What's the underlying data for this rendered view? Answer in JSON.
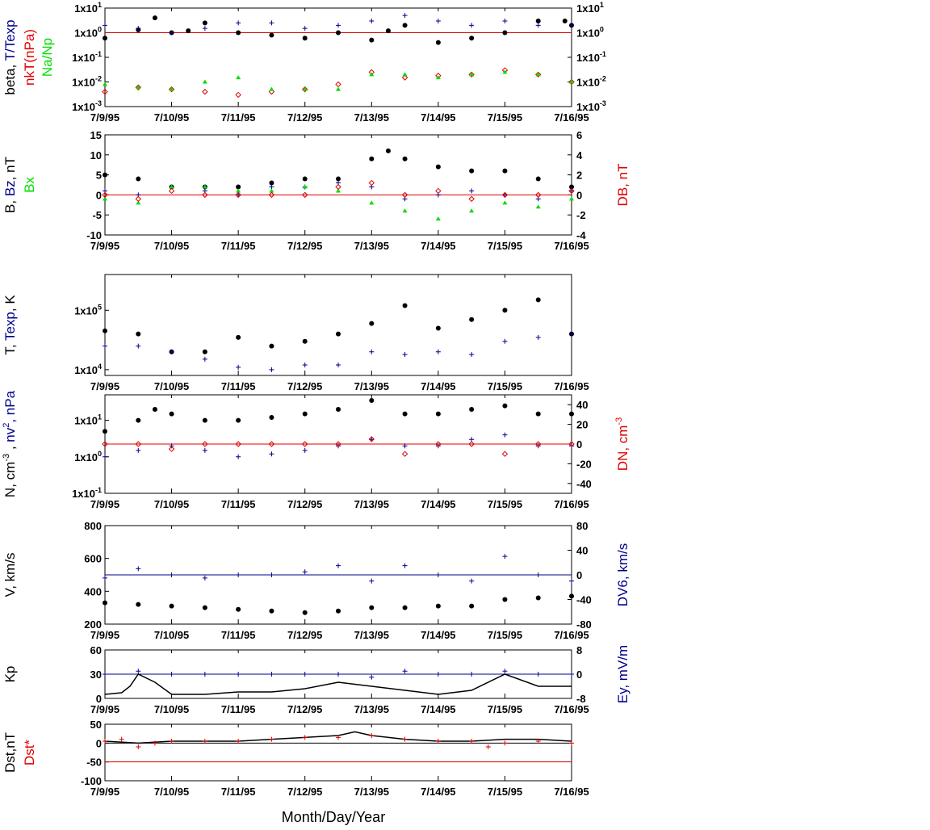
{
  "colors": {
    "black": "#000000",
    "red": "#e00000",
    "blue": "#00008b",
    "green": "#00dd00"
  },
  "x_axis": {
    "ticks": [
      "7/9/95",
      "7/10/95",
      "7/11/95",
      "7/12/95",
      "7/13/95",
      "7/14/95",
      "7/15/95",
      "7/16/95"
    ],
    "title": "Month/Day/Year"
  },
  "chart_data": [
    {
      "type": "scatter",
      "yscale": "log",
      "ylim": [
        0.001,
        10
      ],
      "y_ticks_left": [
        "1x10-3",
        "1x10-2",
        "1x10-1",
        "1x100",
        "1x101"
      ],
      "y_ticks_right": [
        "1x10-3",
        "1x10-2",
        "1x10-1",
        "1x100",
        "1x101"
      ],
      "ylabel_left": [
        [
          "beta",
          "black"
        ],
        [
          ", ",
          "black"
        ],
        [
          "T/Texp",
          "blue"
        ]
      ],
      "ylabel_left2": [
        [
          "nkT(nPa)",
          "red"
        ]
      ],
      "ylabel_left3": [
        [
          "Na/Np",
          "green"
        ]
      ],
      "reference_line": {
        "y": 1,
        "color": "red"
      },
      "series": [
        {
          "name": "beta",
          "marker": "dot",
          "color": "black",
          "x": [
            0,
            0.5,
            0.75,
            1,
            1.25,
            1.5,
            2,
            2.5,
            3,
            3.5,
            4,
            4.25,
            4.5,
            5,
            5.5,
            6,
            6.5,
            6.9,
            7
          ],
          "y": [
            0.6,
            1.3,
            4,
            1,
            1.2,
            2.5,
            1,
            0.8,
            0.6,
            1,
            0.5,
            1.2,
            2,
            0.4,
            0.6,
            1,
            3,
            3,
            2
          ]
        },
        {
          "name": "T/Texp",
          "marker": "plus",
          "color": "blue",
          "x": [
            0,
            0.5,
            1,
            1.5,
            2,
            2.5,
            3,
            3.5,
            4,
            4.5,
            5,
            5.5,
            6,
            6.5,
            7
          ],
          "y": [
            2,
            1.5,
            1,
            1.5,
            2.5,
            2.5,
            1.5,
            2,
            3,
            5,
            3,
            2,
            3,
            2,
            2
          ]
        },
        {
          "name": "nkT(nPa)",
          "marker": "diamond",
          "color": "red",
          "x": [
            0,
            0.5,
            1,
            1.5,
            2,
            2.5,
            3,
            3.5,
            4,
            4.5,
            5,
            5.5,
            6,
            6.5,
            7
          ],
          "y": [
            0.004,
            0.006,
            0.005,
            0.004,
            0.003,
            0.004,
            0.005,
            0.008,
            0.025,
            0.015,
            0.018,
            0.02,
            0.03,
            0.02,
            0.01
          ]
        },
        {
          "name": "Na/Np",
          "marker": "triangle",
          "color": "green",
          "x": [
            0,
            0.5,
            1,
            1.5,
            2,
            2.5,
            3,
            3.5,
            4,
            4.5,
            5,
            5.5,
            6,
            6.5,
            7
          ],
          "y": [
            0.008,
            0.006,
            0.005,
            0.01,
            0.015,
            0.005,
            0.005,
            0.005,
            0.02,
            0.02,
            0.015,
            0.02,
            0.025,
            0.02,
            0.01
          ]
        }
      ]
    },
    {
      "type": "scatter",
      "ylim": [
        -10,
        15
      ],
      "y2lim": [
        -4,
        6
      ],
      "y_ticks_left": [
        "-10",
        "-5",
        "0",
        "5",
        "10",
        "15"
      ],
      "y_ticks_right": [
        "-4",
        "-2",
        "0",
        "2",
        "4",
        "6"
      ],
      "ylabel_left": [
        [
          "B, ",
          "black"
        ],
        [
          "Bz",
          "blue"
        ],
        [
          ", nT",
          "black"
        ]
      ],
      "ylabel_left2": [
        [
          "Bx",
          "green"
        ]
      ],
      "ylabel_right": [
        [
          "DB, nT",
          "red"
        ]
      ],
      "reference_line": {
        "y": 0,
        "color": "red"
      },
      "series": [
        {
          "name": "B",
          "marker": "dot",
          "color": "black",
          "x": [
            0,
            0.5,
            1,
            1.5,
            2,
            2.5,
            3,
            3.5,
            4,
            4.25,
            4.5,
            5,
            5.5,
            6,
            6.5,
            7
          ],
          "y": [
            5,
            4,
            2,
            2,
            2,
            3,
            4,
            4,
            9,
            11,
            9,
            7,
            6,
            6,
            4,
            2
          ]
        },
        {
          "name": "Bz",
          "marker": "plus",
          "color": "blue",
          "x": [
            0,
            0.5,
            1,
            1.5,
            2,
            2.5,
            3,
            3.5,
            4,
            4.5,
            5,
            5.5,
            6,
            6.5,
            7
          ],
          "y": [
            1,
            0,
            2,
            1,
            0,
            2,
            2,
            3,
            2,
            -1,
            0,
            1,
            0,
            -1,
            1
          ]
        },
        {
          "name": "Bx",
          "marker": "triangle",
          "color": "green",
          "x": [
            0,
            0.5,
            1,
            1.5,
            2,
            2.5,
            3,
            3.5,
            4,
            4.5,
            5,
            5.5,
            6,
            6.5,
            7
          ],
          "y": [
            -1,
            -2,
            2,
            2,
            1,
            1,
            2,
            1,
            -2,
            -4,
            -6,
            -4,
            -2,
            -3,
            -1
          ]
        },
        {
          "name": "DB",
          "marker": "diamond",
          "color": "red",
          "x": [
            0,
            0.5,
            1,
            1.5,
            2,
            2.5,
            3,
            3.5,
            4,
            4.5,
            5,
            5.5,
            6,
            6.5,
            7
          ],
          "y": [
            0,
            -1,
            1,
            0,
            0,
            0,
            0,
            2,
            3,
            0,
            1,
            -1,
            0,
            0,
            1
          ]
        }
      ]
    },
    {
      "type": "scatter",
      "yscale": "log",
      "ylim": [
        8000,
        400000
      ],
      "y_ticks_left": [
        "1x104",
        "1x105"
      ],
      "ylabel_left": [
        [
          "T, ",
          "black"
        ],
        [
          "Texp",
          "blue"
        ],
        [
          ", K",
          "black"
        ]
      ],
      "series": [
        {
          "name": "T",
          "marker": "dot",
          "color": "black",
          "x": [
            0,
            0.5,
            1,
            1.5,
            2,
            2.5,
            3,
            3.5,
            4,
            4.5,
            5,
            5.5,
            6,
            6.5,
            7
          ],
          "y": [
            45000,
            40000,
            20000,
            20000,
            35000,
            25000,
            30000,
            40000,
            60000,
            120000,
            50000,
            70000,
            100000,
            150000,
            40000
          ]
        },
        {
          "name": "Texp",
          "marker": "plus",
          "color": "blue",
          "x": [
            0,
            0.5,
            1,
            1.5,
            2,
            2.5,
            3,
            3.5,
            4,
            4.5,
            5,
            5.5,
            6,
            6.5,
            7
          ],
          "y": [
            25000,
            25000,
            20000,
            15000,
            11000,
            10000,
            12000,
            12000,
            20000,
            18000,
            20000,
            18000,
            30000,
            35000,
            40000
          ]
        }
      ]
    },
    {
      "type": "scatter",
      "yscale": "log",
      "ylim": [
        0.1,
        50
      ],
      "y2lim": [
        -50,
        50
      ],
      "y_ticks_left": [
        "1x10-1",
        "1x100",
        "1x101"
      ],
      "y_ticks_right": [
        "-40",
        "-20",
        "0",
        "20",
        "40"
      ],
      "ylabel_left": [
        [
          "N, cm",
          "black"
        ],
        [
          "-3",
          "black",
          "sup"
        ],
        [
          " , ",
          "black"
        ],
        [
          "nv",
          "blue"
        ],
        [
          "2",
          "blue",
          "sup"
        ],
        [
          ", nPa",
          "blue"
        ]
      ],
      "ylabel_right": [
        [
          "DN, cm",
          "red"
        ],
        [
          "-3",
          "red",
          "sup"
        ]
      ],
      "reference_line": {
        "y2": 0,
        "color": "red"
      },
      "series": [
        {
          "name": "N",
          "marker": "dot",
          "color": "black",
          "x": [
            0,
            0.5,
            0.75,
            1,
            1.5,
            2,
            2.5,
            3,
            3.5,
            4,
            4.5,
            5,
            5.5,
            6,
            6.5,
            7
          ],
          "y": [
            5,
            10,
            20,
            15,
            10,
            10,
            12,
            15,
            20,
            35,
            15,
            15,
            20,
            25,
            15,
            15
          ]
        },
        {
          "name": "nv2",
          "marker": "plus",
          "color": "blue",
          "x": [
            0,
            0.5,
            1,
            1.5,
            2,
            2.5,
            3,
            3.5,
            4,
            4.5,
            5,
            5.5,
            6,
            6.5,
            7
          ],
          "y": [
            1,
            1.5,
            2,
            1.5,
            1,
            1.2,
            1.5,
            2,
            3,
            2,
            2,
            3,
            4,
            2,
            2
          ]
        },
        {
          "name": "DN",
          "marker": "diamond",
          "color": "red",
          "axis": "right",
          "x": [
            0,
            0.5,
            1,
            1.5,
            2,
            2.5,
            3,
            3.5,
            4,
            4.5,
            5,
            5.5,
            6,
            6.5,
            7
          ],
          "y": [
            0,
            0,
            -5,
            0,
            0,
            0,
            0,
            0,
            5,
            -10,
            0,
            0,
            -10,
            0,
            0
          ]
        }
      ]
    },
    {
      "type": "scatter",
      "ylim": [
        200,
        800
      ],
      "y2lim": [
        -80,
        80
      ],
      "y_ticks_left": [
        "200",
        "400",
        "600",
        "800"
      ],
      "y_ticks_right": [
        "-80",
        "-40",
        "0",
        "40",
        "80"
      ],
      "ylabel_left": [
        [
          "V, km/s",
          "black"
        ]
      ],
      "ylabel_right": [
        [
          "DV6, km/s",
          "blue"
        ]
      ],
      "reference_line": {
        "y2": 0,
        "color": "blue"
      },
      "series": [
        {
          "name": "V",
          "marker": "dot",
          "color": "black",
          "x": [
            0,
            0.5,
            1,
            1.5,
            2,
            2.5,
            3,
            3.5,
            4,
            4.5,
            5,
            5.5,
            6,
            6.5,
            7
          ],
          "y": [
            330,
            320,
            310,
            300,
            290,
            280,
            270,
            280,
            300,
            300,
            310,
            310,
            350,
            360,
            370
          ]
        },
        {
          "name": "DV6",
          "marker": "plus",
          "color": "blue",
          "axis": "right",
          "x": [
            0,
            0.5,
            1,
            1.5,
            2,
            2.5,
            3,
            3.5,
            4,
            4.5,
            5,
            5.5,
            6,
            6.5,
            7
          ],
          "y": [
            -5,
            10,
            0,
            -5,
            0,
            0,
            5,
            15,
            -10,
            15,
            0,
            -10,
            30,
            0,
            -10
          ]
        }
      ]
    },
    {
      "type": "line",
      "ylim": [
        0,
        60
      ],
      "y2lim": [
        -8,
        8
      ],
      "y_ticks_left": [
        "0",
        "30",
        "60"
      ],
      "y_ticks_right": [
        "-8",
        "0",
        "8"
      ],
      "ylabel_left": [
        [
          "Kp",
          "black"
        ]
      ],
      "ylabel_right": [
        [
          "Ey,  mV/m",
          "blue"
        ]
      ],
      "reference_line": {
        "y2": 0,
        "color": "blue"
      },
      "series": [
        {
          "name": "Kp",
          "marker": "line",
          "color": "black",
          "x": [
            0,
            0.25,
            0.375,
            0.5,
            0.75,
            1,
            1.5,
            2,
            2.5,
            3,
            3.5,
            4,
            4.5,
            5,
            5.5,
            6,
            6.5,
            7
          ],
          "y": [
            5,
            7,
            15,
            30,
            20,
            5,
            5,
            8,
            8,
            12,
            20,
            15,
            10,
            5,
            10,
            30,
            15,
            15
          ]
        },
        {
          "name": "Ey",
          "marker": "plus",
          "color": "blue",
          "axis": "right",
          "x": [
            0,
            0.5,
            1,
            1.5,
            2,
            2.5,
            3,
            3.5,
            4,
            4.5,
            5,
            5.5,
            6,
            6.5,
            7
          ],
          "y": [
            0,
            1,
            0,
            0,
            0,
            0,
            0,
            0,
            -1,
            1,
            0,
            0,
            1,
            0,
            0
          ]
        }
      ]
    },
    {
      "type": "line",
      "ylim": [
        -100,
        50
      ],
      "y_ticks_left": [
        "-100",
        "-50",
        "0",
        "50"
      ],
      "ylabel_left": [
        [
          "Dst,nT",
          "black"
        ]
      ],
      "ylabel_left2": [
        [
          "Dst*",
          "red"
        ]
      ],
      "reference_line": {
        "y": -50,
        "color": "red"
      },
      "zero_line": {
        "y": 0,
        "color": "black"
      },
      "series": [
        {
          "name": "Dst",
          "marker": "line",
          "color": "black",
          "x": [
            0,
            0.5,
            1,
            1.5,
            2,
            2.5,
            3,
            3.5,
            3.75,
            4,
            4.5,
            5,
            5.5,
            6,
            6.5,
            7
          ],
          "y": [
            5,
            0,
            5,
            5,
            5,
            10,
            15,
            20,
            30,
            20,
            10,
            5,
            5,
            10,
            10,
            5
          ]
        },
        {
          "name": "Dst*",
          "marker": "plus",
          "color": "red",
          "x": [
            0,
            0.25,
            0.5,
            0.75,
            1,
            1.5,
            2,
            2.5,
            3,
            3.5,
            4,
            4.5,
            5,
            5.5,
            5.75,
            6,
            6.5,
            7
          ],
          "y": [
            5,
            10,
            -10,
            0,
            5,
            5,
            5,
            10,
            15,
            15,
            20,
            10,
            5,
            5,
            -10,
            0,
            5,
            0
          ]
        }
      ]
    }
  ]
}
